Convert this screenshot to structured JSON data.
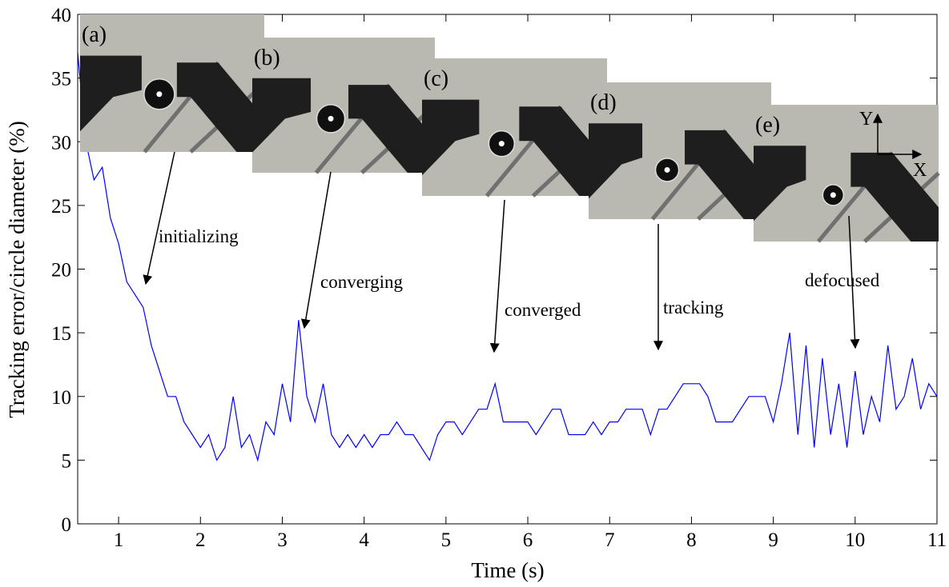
{
  "chart_data": {
    "type": "line",
    "x_label": "Time (s)",
    "y_label": "Tracking error/circle diameter (%)",
    "xlim": [
      0.5,
      11
    ],
    "xticks": [
      1,
      2,
      3,
      4,
      5,
      6,
      7,
      8,
      9,
      10,
      11
    ],
    "ylim": [
      0,
      40
    ],
    "yticks": [
      0,
      5,
      10,
      15,
      20,
      25,
      30,
      35,
      40
    ],
    "color": "#0000ff",
    "x": [
      0.5,
      0.6,
      0.7,
      0.8,
      0.9,
      1.0,
      1.1,
      1.2,
      1.3,
      1.4,
      1.5,
      1.6,
      1.7,
      1.8,
      1.9,
      2.0,
      2.1,
      2.2,
      2.3,
      2.4,
      2.5,
      2.6,
      2.7,
      2.8,
      2.9,
      3.0,
      3.1,
      3.2,
      3.3,
      3.4,
      3.5,
      3.6,
      3.7,
      3.8,
      3.9,
      4.0,
      4.1,
      4.2,
      4.3,
      4.4,
      4.5,
      4.6,
      4.7,
      4.8,
      4.9,
      5.0,
      5.1,
      5.2,
      5.3,
      5.4,
      5.5,
      5.6,
      5.7,
      5.8,
      5.9,
      6.0,
      6.1,
      6.2,
      6.3,
      6.4,
      6.5,
      6.6,
      6.7,
      6.8,
      6.9,
      7.0,
      7.1,
      7.2,
      7.3,
      7.4,
      7.5,
      7.6,
      7.7,
      7.8,
      7.9,
      8.0,
      8.1,
      8.2,
      8.3,
      8.4,
      8.5,
      8.6,
      8.7,
      8.8,
      8.9,
      9.0,
      9.1,
      9.2,
      9.3,
      9.4,
      9.5,
      9.6,
      9.7,
      9.8,
      9.9,
      10.0,
      10.1,
      10.2,
      10.3,
      10.4,
      10.5,
      10.6,
      10.7,
      10.8,
      10.9,
      11.0
    ],
    "values": [
      37,
      30,
      27,
      28,
      24,
      22,
      19,
      18,
      17,
      14,
      12,
      10,
      10,
      8,
      7,
      6,
      7,
      5,
      6,
      10,
      6,
      7,
      5,
      8,
      7,
      11,
      8,
      16,
      10,
      8,
      11,
      7,
      6,
      7,
      6,
      7,
      6,
      7,
      7,
      8,
      7,
      7,
      6,
      5,
      7,
      8,
      8,
      7,
      8,
      9,
      9,
      11,
      8,
      8,
      8,
      8,
      7,
      8,
      9,
      9,
      7,
      7,
      7,
      8,
      7,
      8,
      8,
      9,
      9,
      9,
      7,
      9,
      9,
      10,
      11,
      11,
      11,
      10,
      8,
      8,
      8,
      9,
      10,
      10,
      10,
      8,
      11,
      15,
      7,
      14,
      6,
      13,
      7,
      11,
      6,
      12,
      7,
      10,
      8,
      14,
      9,
      10,
      13,
      9,
      11,
      10
    ],
    "annotations": [
      "initializing",
      "converging",
      "converged",
      "tracking",
      "defocused"
    ],
    "insets": [
      "(a)",
      "(b)",
      "(c)",
      "(d)",
      "(e)"
    ],
    "inset_axes": [
      "X",
      "Y"
    ]
  }
}
